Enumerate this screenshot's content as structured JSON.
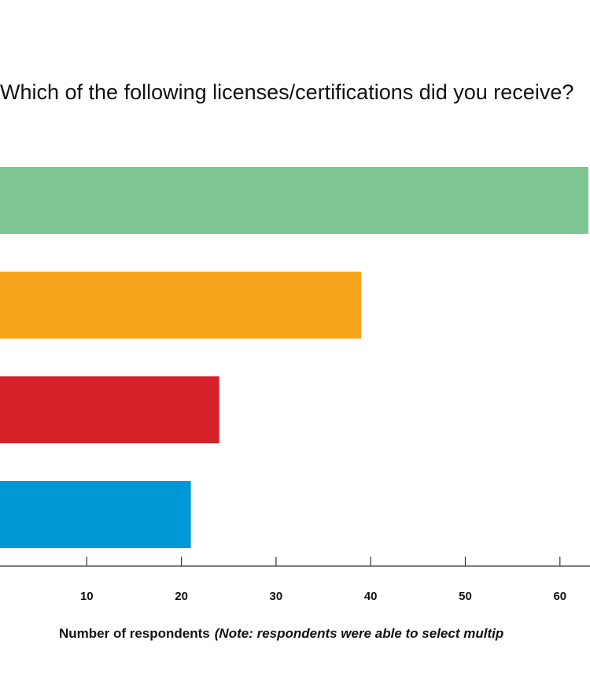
{
  "chart_data": {
    "type": "bar",
    "orientation": "horizontal",
    "title": "Which of the following licenses/certifications did you receive?",
    "xlabel": "Number of respondents",
    "xlabel_note": "(Note: respondents were able to select multip",
    "ylabel": "",
    "categories": [
      "",
      "",
      "",
      ""
    ],
    "values": [
      63,
      39,
      24,
      21
    ],
    "colors": [
      "#7dc591",
      "#f6a41b",
      "#d6212a",
      "#0198d7"
    ],
    "xticks": [
      10,
      20,
      30,
      40,
      50,
      60
    ],
    "xlim": [
      0,
      63.2
    ],
    "grid": false,
    "legend": "none"
  }
}
